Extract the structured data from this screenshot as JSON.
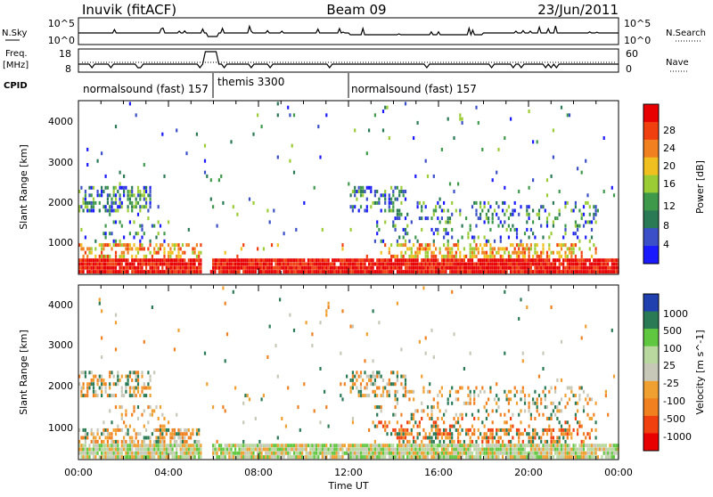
{
  "header": {
    "left": "Inuvik (fitACF)",
    "center": "Beam 09",
    "right": "23/Jun/2011"
  },
  "strip_panel": {
    "left_label": "N.Sky",
    "right_label": "N.Search",
    "left_ticks": [
      "10^5",
      "10^0"
    ],
    "right_ticks": [
      "10^5",
      "10^0"
    ]
  },
  "freq_panel": {
    "left_label_line1": "Freq.",
    "left_label_line2": "[MHz]",
    "right_label": "Nave",
    "left_ticks": [
      "18",
      "8"
    ],
    "right_ticks": [
      "60",
      "0"
    ]
  },
  "cpid": {
    "label": "CPID",
    "segments": [
      {
        "text": "normalsound (fast) 157",
        "start_h": 0.0
      },
      {
        "text": "themis 3300",
        "start_h": 6.0
      },
      {
        "text": "normalsound (fast) 157",
        "start_h": 12.0
      }
    ]
  },
  "colors": {
    "power": [
      "#1a1aff",
      "#3a4fc8",
      "#2a7a55",
      "#3e9a4a",
      "#9bcc36",
      "#f0c020",
      "#f08020",
      "#f04010",
      "#e80000"
    ],
    "velocity": [
      "#e80000",
      "#f04010",
      "#f08020",
      "#f0a030",
      "#c8c8b8",
      "#b8d8a0",
      "#60c840",
      "#2a7a55",
      "#2040b0"
    ]
  },
  "chart_data": [
    {
      "type": "heatmap",
      "title": "Power",
      "xlabel": "",
      "ylabel": "Slant Range [km]",
      "xlim": [
        0,
        24
      ],
      "ylim": [
        180,
        4500
      ],
      "x_ticks": [
        "00:00",
        "04:00",
        "08:00",
        "12:00",
        "16:00",
        "20:00",
        "00:00"
      ],
      "y_ticks": [
        "1000",
        "2000",
        "3000",
        "4000"
      ],
      "colorbar_label": "Power [dB]",
      "colorbar_ticks": [
        "4",
        "8",
        "12",
        "16",
        "20",
        "24",
        "28"
      ]
    },
    {
      "type": "heatmap",
      "title": "Velocity",
      "xlabel": "Time UT",
      "ylabel": "Slant Range [km]",
      "xlim": [
        0,
        24
      ],
      "ylim": [
        180,
        4500
      ],
      "x_ticks": [
        "00:00",
        "04:00",
        "08:00",
        "12:00",
        "16:00",
        "20:00",
        "00:00"
      ],
      "y_ticks": [
        "1000",
        "2000",
        "3000",
        "4000"
      ],
      "colorbar_label": "Velocity [m s^-1]",
      "colorbar_ticks": [
        "1000",
        "500",
        "100",
        "25",
        "-25",
        "-100",
        "-500",
        "-1000"
      ]
    }
  ]
}
